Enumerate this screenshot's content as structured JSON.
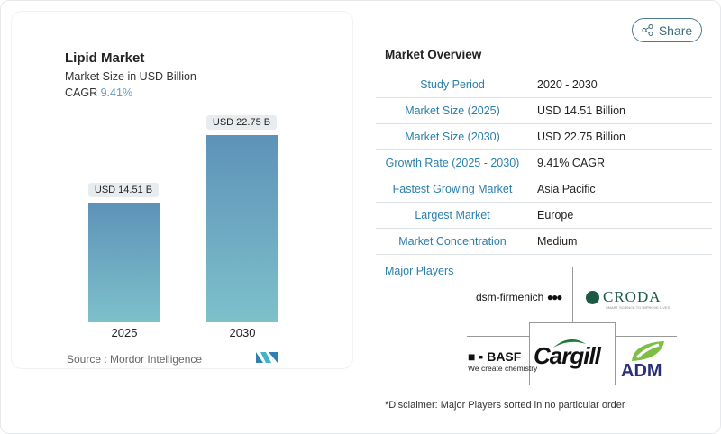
{
  "chart_data": {
    "type": "bar",
    "title": "Lipid Market",
    "subtitle": "Market Size in USD Billion",
    "cagr_label": "CAGR",
    "cagr_value": "9.41%",
    "categories": [
      "2025",
      "2030"
    ],
    "values": [
      14.51,
      22.75
    ],
    "data_labels": [
      "USD 14.51 B",
      "USD 22.75 B"
    ],
    "ylim": [
      0,
      22.75
    ],
    "source": "Source :  Mordor Intelligence"
  },
  "share_label": "Share",
  "overview": {
    "title": "Market Overview",
    "rows": [
      {
        "k": "Study Period",
        "v": "2020 - 2030"
      },
      {
        "k": "Market Size (2025)",
        "v": "USD 14.51 Billion"
      },
      {
        "k": "Market Size (2030)",
        "v": "USD 22.75 Billion"
      },
      {
        "k": "Growth Rate (2025 - 2030)",
        "v": "9.41% CAGR"
      },
      {
        "k": "Fastest Growing Market",
        "v": "Asia Pacific"
      },
      {
        "k": "Largest Market",
        "v": "Europe"
      },
      {
        "k": "Market Concentration",
        "v": "Medium"
      }
    ]
  },
  "players": {
    "title": "Major Players",
    "logos": [
      "dsm-firmenich",
      "CRODA",
      "BASF",
      "We create chemistry",
      "Cargill",
      "ADM"
    ],
    "croda_tag": "SMART SCIENCE TO IMPROVE LIVES"
  },
  "disclaimer": "*Disclaimer: Major Players sorted in no particular order"
}
